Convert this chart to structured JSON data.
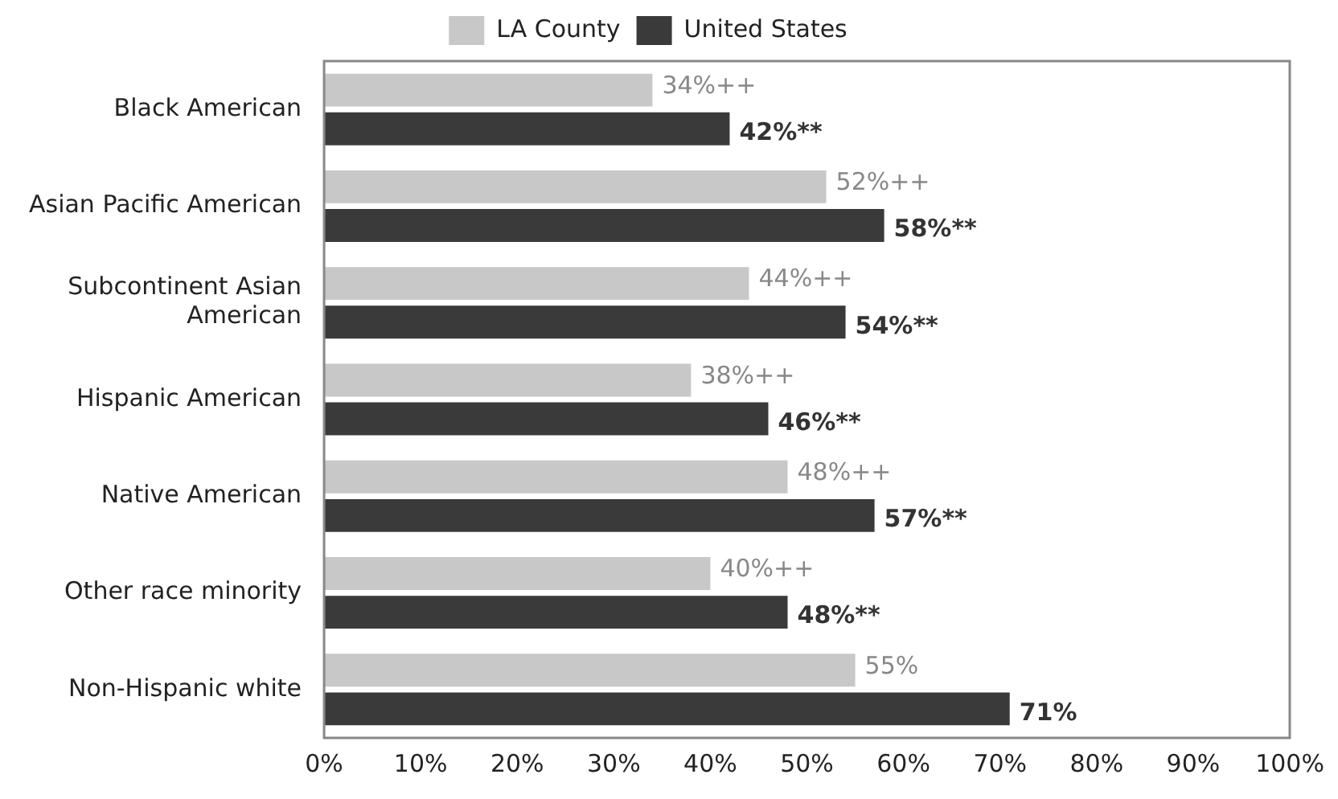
{
  "chart_data": {
    "type": "bar",
    "orientation": "horizontal",
    "categories": [
      "Black American",
      "Asian Pacific American",
      "Subcontinent Asian American",
      "Hispanic American",
      "Native American",
      "Other race minority",
      "Non-Hispanic white"
    ],
    "series": [
      {
        "name": "LA County",
        "color": "#c8c8c8",
        "values": [
          34,
          52,
          44,
          38,
          48,
          40,
          55
        ],
        "value_labels": [
          "34%++",
          "52%++",
          "44%++",
          "38%++",
          "48%++",
          "40%++",
          "55%"
        ]
      },
      {
        "name": "United States",
        "color": "#3a3a3a",
        "values": [
          42,
          58,
          54,
          46,
          57,
          48,
          71
        ],
        "value_labels": [
          "42%**",
          "58%**",
          "54%**",
          "46%**",
          "57%**",
          "48%**",
          "71%"
        ]
      }
    ],
    "xlim": [
      0,
      100
    ],
    "xticks": [
      {
        "value": 0,
        "label": "0%"
      },
      {
        "value": 10,
        "label": "10%"
      },
      {
        "value": 20,
        "label": "20%"
      },
      {
        "value": 30,
        "label": "30%"
      },
      {
        "value": 40,
        "label": "40%"
      },
      {
        "value": 50,
        "label": "50%"
      },
      {
        "value": 60,
        "label": "60%"
      },
      {
        "value": 70,
        "label": "70%"
      },
      {
        "value": 80,
        "label": "80%"
      },
      {
        "value": 90,
        "label": "90%"
      },
      {
        "value": 100,
        "label": "100%"
      }
    ],
    "legend": "top",
    "grid": false
  }
}
